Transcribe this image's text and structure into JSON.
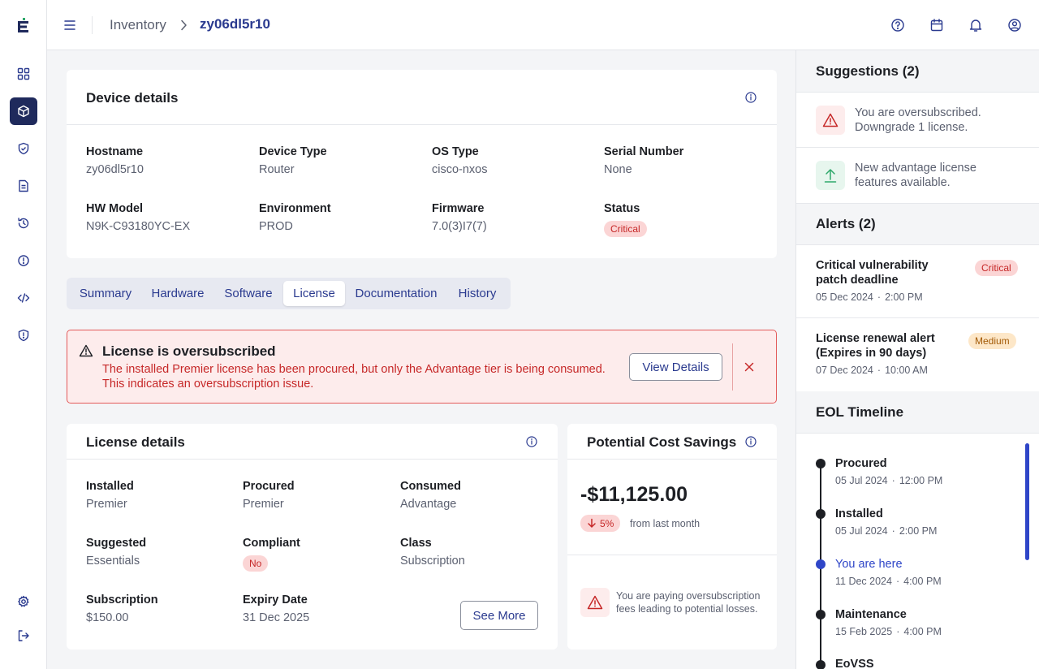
{
  "colors": {
    "accent": "#2a3a8f",
    "critical": "#c62828",
    "critical_bg": "#fdecec",
    "medium": "#a35a06",
    "success": "#2fa86b",
    "current": "#2f46c8"
  },
  "sidebar": {
    "logo_icon": "brand-e-icon",
    "items": [
      {
        "icon": "grid-icon",
        "active": false
      },
      {
        "icon": "cube-icon",
        "active": true
      },
      {
        "icon": "shield-check-icon",
        "active": false
      },
      {
        "icon": "document-icon",
        "active": false
      },
      {
        "icon": "history-icon",
        "active": false
      },
      {
        "icon": "alert-circle-icon",
        "active": false
      },
      {
        "icon": "code-icon",
        "active": false
      },
      {
        "icon": "shield-alert-icon",
        "active": false
      }
    ],
    "bottom": [
      {
        "icon": "gear-icon"
      },
      {
        "icon": "logout-icon"
      }
    ]
  },
  "header": {
    "breadcrumb": [
      "Inventory",
      "zy06dl5r10"
    ],
    "icons": [
      "help-icon",
      "calendar-icon",
      "bell-icon",
      "user-icon"
    ]
  },
  "device": {
    "title": "Device details",
    "fields": [
      {
        "label": "Hostname",
        "value": "zy06dl5r10"
      },
      {
        "label": "Device Type",
        "value": "Router"
      },
      {
        "label": "OS Type",
        "value": "cisco-nxos"
      },
      {
        "label": "Serial Number",
        "value": "None"
      },
      {
        "label": "HW Model",
        "value": "N9K-C93180YC-EX"
      },
      {
        "label": "Environment",
        "value": "PROD"
      },
      {
        "label": "Firmware",
        "value": "7.0(3)I7(7)"
      },
      {
        "label": "Status",
        "value": "Critical"
      }
    ]
  },
  "tabs": [
    {
      "label": "Summary",
      "active": false
    },
    {
      "label": "Hardware",
      "active": false
    },
    {
      "label": "Software",
      "active": false
    },
    {
      "label": "License",
      "active": true
    },
    {
      "label": "Documentation",
      "active": false
    },
    {
      "label": "History",
      "active": false
    }
  ],
  "alert": {
    "title": "License is oversubscribed",
    "line1": "The installed Premier license has been procured, but only the Advantage tier is being consumed.",
    "line2": "This indicates an oversubscription issue.",
    "button": "View Details"
  },
  "license": {
    "title": "License details",
    "fields": [
      {
        "label": "Installed",
        "value": "Premier"
      },
      {
        "label": "Procured",
        "value": "Premier"
      },
      {
        "label": "Consumed",
        "value": "Advantage"
      },
      {
        "label": "Suggested",
        "value": "Essentials"
      },
      {
        "label": "Compliant",
        "value": "No"
      },
      {
        "label": "Class",
        "value": "Subscription"
      },
      {
        "label": "Subscription",
        "value": "$150.00"
      },
      {
        "label": "Expiry Date",
        "value": "31 Dec 2025"
      }
    ],
    "button": "See More"
  },
  "savings": {
    "title": "Potential Cost Savings",
    "amount": "-$11,125.00",
    "change": "5%",
    "change_label": "from last month",
    "warning_line1": "You are paying oversubscription",
    "warning_line2": "fees leading to potential losses."
  },
  "suggestions": {
    "title": "Suggestions (2)",
    "items": [
      {
        "icon": "warning-icon",
        "line1": "You are oversubscribed.",
        "line2": "Downgrade 1 license."
      },
      {
        "icon": "upload-arrow-icon",
        "line1": "New advantage license",
        "line2": "features available."
      }
    ]
  },
  "alerts": {
    "title": "Alerts (2)",
    "items": [
      {
        "line1": "Critical vulnerability",
        "line2": "patch deadline",
        "date": "05 Dec 2024",
        "time": "2:00 PM",
        "badge": "Critical"
      },
      {
        "line1": "License renewal alert",
        "line2": "(Expires in 90 days)",
        "date": "07 Dec 2024",
        "time": "10:00 AM",
        "badge": "Medium"
      }
    ]
  },
  "eol": {
    "title": "EOL Timeline",
    "items": [
      {
        "name": "Procured",
        "date": "05 Jul 2024",
        "time": "12:00 PM",
        "current": false
      },
      {
        "name": "Installed",
        "date": "05 Jul 2024",
        "time": "2:00 PM",
        "current": false
      },
      {
        "name": "You are here",
        "date": "11 Dec 2024",
        "time": "4:00 PM",
        "current": true
      },
      {
        "name": "Maintenance",
        "date": "15 Feb 2025",
        "time": "4:00 PM",
        "current": false
      },
      {
        "name": "EoVSS",
        "date": "",
        "time": "",
        "current": false
      }
    ]
  }
}
